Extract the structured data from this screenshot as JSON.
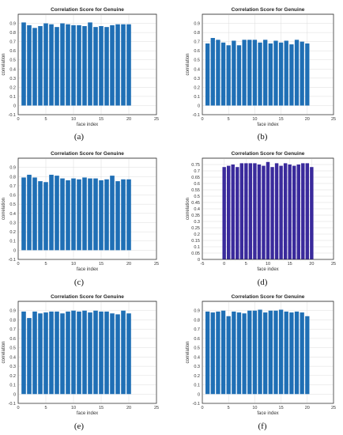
{
  "chart_data": [
    {
      "panel": "a",
      "caption": "(a)",
      "type": "bar",
      "title": "Correlation Score for Genuine",
      "xlabel": "face index",
      "ylabel": "correlation",
      "color": "#1f6fb5",
      "xlim": [
        0,
        25
      ],
      "ylim": [
        -0.1,
        1.0
      ],
      "xticks": [
        "0",
        "5",
        "10",
        "15",
        "20",
        "25"
      ],
      "yticks": [
        "-0.1",
        "0",
        "0.1",
        "0.2",
        "0.3",
        "0.4",
        "0.5",
        "0.6",
        "0.7",
        "0.8",
        "0.9"
      ],
      "x": [
        1,
        2,
        3,
        4,
        5,
        6,
        7,
        8,
        9,
        10,
        11,
        12,
        13,
        14,
        15,
        16,
        17,
        18,
        19,
        20
      ],
      "values": [
        0.91,
        0.88,
        0.85,
        0.87,
        0.9,
        0.89,
        0.86,
        0.9,
        0.89,
        0.88,
        0.88,
        0.87,
        0.91,
        0.86,
        0.87,
        0.86,
        0.88,
        0.89,
        0.89,
        0.89
      ]
    },
    {
      "panel": "b",
      "caption": "(b)",
      "type": "bar",
      "title": "Correlation Score for Genuine",
      "xlabel": "face index",
      "ylabel": "correlation",
      "color": "#1f6fb5",
      "xlim": [
        0,
        25
      ],
      "ylim": [
        -0.1,
        1.0
      ],
      "xticks": [
        "0",
        "5",
        "10",
        "15",
        "20",
        "25"
      ],
      "yticks": [
        "-0.1",
        "0",
        "0.1",
        "0.2",
        "0.3",
        "0.4",
        "0.5",
        "0.6",
        "0.7",
        "0.8",
        "0.9"
      ],
      "x": [
        1,
        2,
        3,
        4,
        5,
        6,
        7,
        8,
        9,
        10,
        11,
        12,
        13,
        14,
        15,
        16,
        17,
        18,
        19,
        20
      ],
      "values": [
        0.68,
        0.74,
        0.72,
        0.69,
        0.66,
        0.71,
        0.66,
        0.72,
        0.72,
        0.72,
        0.69,
        0.72,
        0.68,
        0.71,
        0.69,
        0.71,
        0.67,
        0.72,
        0.7,
        0.68
      ]
    },
    {
      "panel": "c",
      "caption": "(c)",
      "type": "bar",
      "title": "Correlation Score for Genuine",
      "xlabel": "face index",
      "ylabel": "correlation",
      "color": "#1f6fb5",
      "xlim": [
        0,
        25
      ],
      "ylim": [
        -0.1,
        1.0
      ],
      "xticks": [
        "0",
        "5",
        "10",
        "15",
        "20",
        "25"
      ],
      "yticks": [
        "-0.1",
        "0",
        "0.1",
        "0.2",
        "0.3",
        "0.4",
        "0.5",
        "0.6",
        "0.7",
        "0.8",
        "0.9"
      ],
      "x": [
        1,
        2,
        3,
        4,
        5,
        6,
        7,
        8,
        9,
        10,
        11,
        12,
        13,
        14,
        15,
        16,
        17,
        18,
        19,
        20
      ],
      "values": [
        0.79,
        0.82,
        0.79,
        0.75,
        0.74,
        0.82,
        0.81,
        0.78,
        0.76,
        0.78,
        0.77,
        0.79,
        0.78,
        0.78,
        0.76,
        0.77,
        0.81,
        0.75,
        0.77,
        0.77
      ]
    },
    {
      "panel": "d",
      "caption": "(d)",
      "type": "bar",
      "title": "Correlation Score for Genuine",
      "xlabel": "face index",
      "ylabel": "correlation",
      "color": "#3a2a9c",
      "xlim": [
        -5,
        25
      ],
      "ylim": [
        0,
        0.8
      ],
      "xticks": [
        "-5",
        "0",
        "5",
        "10",
        "15",
        "20",
        "25"
      ],
      "yticks": [
        "0",
        "0.05",
        "0.1",
        "0.15",
        "0.2",
        "0.25",
        "0.3",
        "0.35",
        "0.4",
        "0.45",
        "0.5",
        "0.55",
        "0.6",
        "0.65",
        "0.7",
        "0.75"
      ],
      "x": [
        0,
        1,
        2,
        3,
        4,
        5,
        6,
        7,
        8,
        9,
        10,
        11,
        12,
        13,
        14,
        15,
        16,
        17,
        18,
        19,
        20
      ],
      "values": [
        0.73,
        0.74,
        0.75,
        0.73,
        0.76,
        0.76,
        0.76,
        0.76,
        0.75,
        0.74,
        0.77,
        0.73,
        0.76,
        0.74,
        0.76,
        0.75,
        0.74,
        0.75,
        0.76,
        0.76,
        0.73
      ]
    },
    {
      "panel": "e",
      "caption": "(e)",
      "type": "bar",
      "title": "Correlation Score for Genuine",
      "xlabel": "face index",
      "ylabel": "correlation",
      "color": "#1f6fb5",
      "xlim": [
        0,
        25
      ],
      "ylim": [
        -0.1,
        1.0
      ],
      "xticks": [
        "0",
        "5",
        "10",
        "15",
        "20",
        "25"
      ],
      "yticks": [
        "-0.1",
        "0",
        "0.1",
        "0.2",
        "0.3",
        "0.4",
        "0.5",
        "0.6",
        "0.7",
        "0.8",
        "0.9"
      ],
      "x": [
        1,
        2,
        3,
        4,
        5,
        6,
        7,
        8,
        9,
        10,
        11,
        12,
        13,
        14,
        15,
        16,
        17,
        18,
        19,
        20
      ],
      "values": [
        0.89,
        0.82,
        0.89,
        0.87,
        0.88,
        0.89,
        0.89,
        0.87,
        0.89,
        0.9,
        0.89,
        0.9,
        0.88,
        0.9,
        0.89,
        0.89,
        0.87,
        0.86,
        0.9,
        0.87
      ]
    },
    {
      "panel": "f",
      "caption": "(f)",
      "type": "bar",
      "title": "Correlation Score for Genuine",
      "xlabel": "face index",
      "ylabel": "correlation",
      "color": "#1f6fb5",
      "xlim": [
        0,
        25
      ],
      "ylim": [
        -0.1,
        1.0
      ],
      "xticks": [
        "0",
        "5",
        "10",
        "15",
        "20",
        "25"
      ],
      "yticks": [
        "-0.1",
        "0",
        "0.1",
        "0.2",
        "0.3",
        "0.4",
        "0.5",
        "0.6",
        "0.7",
        "0.8",
        "0.9"
      ],
      "x": [
        1,
        2,
        3,
        4,
        5,
        6,
        7,
        8,
        9,
        10,
        11,
        12,
        13,
        14,
        15,
        16,
        17,
        18,
        19,
        20
      ],
      "values": [
        0.89,
        0.88,
        0.89,
        0.9,
        0.84,
        0.89,
        0.88,
        0.87,
        0.9,
        0.9,
        0.91,
        0.88,
        0.9,
        0.9,
        0.91,
        0.89,
        0.88,
        0.89,
        0.88,
        0.84
      ]
    }
  ]
}
